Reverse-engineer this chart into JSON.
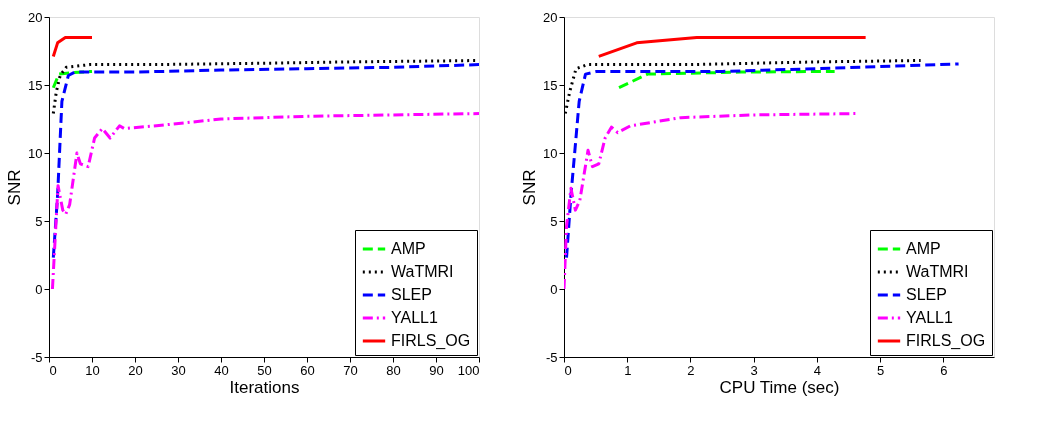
{
  "chart_data": [
    {
      "type": "line",
      "xlabel": "Iterations",
      "ylabel": "SNR",
      "xlim": [
        0,
        100
      ],
      "xticks": [
        0,
        10,
        20,
        30,
        40,
        50,
        60,
        70,
        80,
        90,
        100
      ],
      "ylim": [
        -5,
        20
      ],
      "yticks": [
        -5,
        0,
        5,
        10,
        15,
        20
      ],
      "grid": false,
      "legend": "bottom right",
      "series": [
        {
          "name": "AMP",
          "color": "#00ff00",
          "line_style": "dashed",
          "x": [
            1,
            2.3,
            5,
            10
          ],
          "values": [
            14.8,
            15.8,
            15.9,
            16.0
          ]
        },
        {
          "name": "WaTMRI",
          "color": "#000000",
          "line_style": "dotted",
          "x": [
            1,
            1.7,
            2.6,
            4,
            9.5,
            24,
            50,
            70,
            100
          ],
          "values": [
            12.9,
            14.5,
            15.7,
            16.3,
            16.5,
            16.5,
            16.6,
            16.7,
            16.8
          ]
        },
        {
          "name": "SLEP",
          "color": "#0000ff",
          "line_style": "dashed",
          "x": [
            1,
            2,
            3,
            4.5,
            6,
            20,
            40,
            60,
            80,
            100
          ],
          "values": [
            2.3,
            6.9,
            13.8,
            15.7,
            15.95,
            15.95,
            16.1,
            16.2,
            16.3,
            16.5
          ]
        },
        {
          "name": "YALL1",
          "color": "#ff00ff",
          "line_style": "dashdot",
          "x": [
            0.8,
            2.1,
            3.2,
            3.9,
            4.8,
            6.5,
            7.3,
            9.1,
            10.6,
            12.4,
            14.2,
            16.4,
            17.5,
            25,
            40,
            60,
            80,
            100
          ],
          "values": [
            0,
            7.6,
            5.8,
            5.5,
            6.2,
            10,
            9.2,
            9,
            11.1,
            11.8,
            11.1,
            12,
            11.8,
            12.0,
            12.5,
            12.7,
            12.8,
            12.9
          ]
        },
        {
          "name": "FIRLS_OG",
          "color": "#ff0000",
          "line_style": "solid",
          "x": [
            1,
            2,
            3.8,
            10
          ],
          "values": [
            17.1,
            18.1,
            18.5,
            18.5
          ]
        }
      ]
    },
    {
      "type": "line",
      "xlabel": "CPU Time (sec)",
      "ylabel": "SNR",
      "xlim": [
        0,
        6.8
      ],
      "xticks": [
        0,
        1,
        2,
        3,
        4,
        5,
        6
      ],
      "ylim": [
        -5,
        20
      ],
      "yticks": [
        -5,
        0,
        5,
        10,
        15,
        20
      ],
      "grid": false,
      "legend": "bottom right",
      "series": [
        {
          "name": "AMP",
          "color": "#00ff00",
          "line_style": "dashed",
          "x": [
            0.87,
            1.32,
            2.8,
            4.28
          ],
          "values": [
            14.8,
            15.8,
            15.95,
            16.0
          ]
        },
        {
          "name": "WaTMRI",
          "color": "#000000",
          "line_style": "dotted",
          "x": [
            0.02,
            0.09,
            0.19,
            0.37,
            2,
            4,
            5.64
          ],
          "values": [
            12.9,
            14.5,
            16.2,
            16.5,
            16.5,
            16.7,
            16.8
          ]
        },
        {
          "name": "SLEP",
          "color": "#0000ff",
          "line_style": "dashed",
          "x": [
            0.04,
            0.11,
            0.24,
            0.34,
            0.52,
            2.5,
            4,
            6.24
          ],
          "values": [
            2.3,
            6.9,
            13.8,
            15.8,
            16.0,
            16.0,
            16.2,
            16.55
          ]
        },
        {
          "name": "YALL1",
          "color": "#ff00ff",
          "line_style": "dashdot",
          "x": [
            0,
            0.04,
            0.11,
            0.18,
            0.25,
            0.38,
            0.45,
            0.55,
            0.65,
            0.75,
            0.85,
            1.05,
            1.85,
            3,
            4.64
          ],
          "values": [
            0,
            4.6,
            7.4,
            5.8,
            6.5,
            10.2,
            9.0,
            9.2,
            11.1,
            11.9,
            11.5,
            12,
            12.6,
            12.8,
            12.9
          ]
        },
        {
          "name": "FIRLS_OG",
          "color": "#ff0000",
          "line_style": "solid",
          "x": [
            0.55,
            1.15,
            2.1,
            4.77
          ],
          "values": [
            17.1,
            18.1,
            18.5,
            18.5
          ]
        }
      ]
    }
  ]
}
